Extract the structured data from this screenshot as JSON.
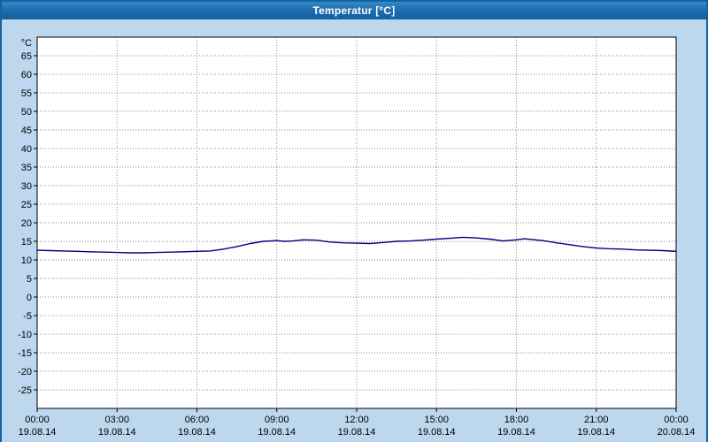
{
  "window": {
    "title": "Temperatur [°C]"
  },
  "chart_data": {
    "type": "line",
    "title": "Temperatur [°C]",
    "y_unit_label": "°C",
    "ylim": [
      -30,
      70
    ],
    "yticks": {
      "min": -25,
      "max": 65,
      "step": 5
    },
    "x_hours_range": [
      0,
      24
    ],
    "xticks": [
      {
        "hour": 0,
        "time": "00:00",
        "date": "19.08.14"
      },
      {
        "hour": 3,
        "time": "03:00",
        "date": "19.08.14"
      },
      {
        "hour": 6,
        "time": "06:00",
        "date": "19.08.14"
      },
      {
        "hour": 9,
        "time": "09:00",
        "date": "19.08.14"
      },
      {
        "hour": 12,
        "time": "12:00",
        "date": "19.08.14"
      },
      {
        "hour": 15,
        "time": "15:00",
        "date": "19.08.14"
      },
      {
        "hour": 18,
        "time": "18:00",
        "date": "19.08.14"
      },
      {
        "hour": 21,
        "time": "21:00",
        "date": "19.08.14"
      },
      {
        "hour": 24,
        "time": "00:00",
        "date": "20.08.14"
      }
    ],
    "grid": true,
    "legend": "none",
    "colors": {
      "plot_background": "#ffffff",
      "plot_border": "#000000",
      "gridline": "#8a8a8a",
      "tick": "#000000",
      "series_line": "#000080",
      "window_background": "#bdd7ee",
      "titlebar": "#1b6cae"
    },
    "series": [
      {
        "name": "Temperatur",
        "color": "#000080",
        "points": [
          [
            0,
            12.6
          ],
          [
            0.5,
            12.5
          ],
          [
            1,
            12.4
          ],
          [
            1.5,
            12.3
          ],
          [
            2,
            12.2
          ],
          [
            2.5,
            12.1
          ],
          [
            3,
            12.0
          ],
          [
            3.5,
            11.9
          ],
          [
            4,
            11.9
          ],
          [
            4.5,
            12.0
          ],
          [
            5,
            12.1
          ],
          [
            5.5,
            12.2
          ],
          [
            6,
            12.3
          ],
          [
            6.5,
            12.4
          ],
          [
            7,
            12.9
          ],
          [
            7.5,
            13.6
          ],
          [
            8,
            14.4
          ],
          [
            8.5,
            15.0
          ],
          [
            9,
            15.2
          ],
          [
            9.3,
            15.0
          ],
          [
            9.6,
            15.1
          ],
          [
            10,
            15.4
          ],
          [
            10.5,
            15.3
          ],
          [
            11,
            14.8
          ],
          [
            11.5,
            14.6
          ],
          [
            12,
            14.5
          ],
          [
            12.5,
            14.4
          ],
          [
            13,
            14.7
          ],
          [
            13.5,
            15.0
          ],
          [
            14,
            15.1
          ],
          [
            14.5,
            15.3
          ],
          [
            15,
            15.6
          ],
          [
            15.5,
            15.8
          ],
          [
            16,
            16.1
          ],
          [
            16.5,
            15.9
          ],
          [
            17,
            15.6
          ],
          [
            17.5,
            15.1
          ],
          [
            18,
            15.4
          ],
          [
            18.3,
            15.7
          ],
          [
            18.7,
            15.4
          ],
          [
            19,
            15.2
          ],
          [
            19.5,
            14.6
          ],
          [
            20,
            14.1
          ],
          [
            20.5,
            13.6
          ],
          [
            21,
            13.2
          ],
          [
            21.5,
            13.0
          ],
          [
            22,
            12.9
          ],
          [
            22.5,
            12.7
          ],
          [
            23,
            12.6
          ],
          [
            23.5,
            12.5
          ],
          [
            24,
            12.3
          ]
        ]
      }
    ]
  }
}
